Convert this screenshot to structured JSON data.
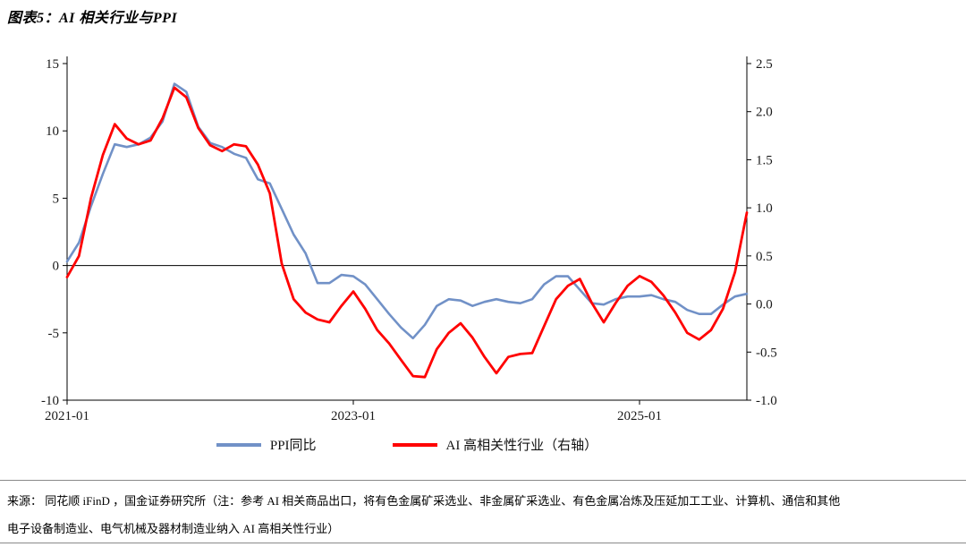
{
  "title": "图表5：AI 相关行业与PPI",
  "legend": [
    {
      "label": "PPI同比",
      "color": "#7191C7"
    },
    {
      "label": "AI 高相关性行业（右轴）",
      "color": "#FF0000"
    }
  ],
  "source_note_line1": "来源：  同花顺 iFinD ，国金证券研究所（注：参考 AI 相关商品出口，将有色金属矿采选业、非金属矿采选业、有色金属冶炼及压延加工工业、计算机、通信和其他",
  "source_note_line2": "电子设备制造业、电气机械及器材制造业纳入 AI 高相关性行业）",
  "chart_data": {
    "type": "line",
    "title": "图表5：AI 相关行业与PPI",
    "x_tick_labels": [
      "2021-01",
      "2023-01",
      "2025-01"
    ],
    "x_tick_month_index": [
      0,
      24,
      48
    ],
    "left_axis": {
      "min": -10,
      "max": 15,
      "ticks": [
        15,
        10,
        5,
        0,
        -5,
        -10
      ]
    },
    "right_axis": {
      "min": -1.0,
      "max": 2.5,
      "ticks": [
        2.5,
        2.0,
        1.5,
        1.0,
        0.5,
        0.0,
        -0.5,
        -1.0
      ]
    },
    "grid": "zero-line-only",
    "legend_position": "bottom",
    "months": [
      "2021-01",
      "2021-02",
      "2021-03",
      "2021-04",
      "2021-05",
      "2021-06",
      "2021-07",
      "2021-08",
      "2021-09",
      "2021-10",
      "2021-11",
      "2021-12",
      "2022-01",
      "2022-02",
      "2022-03",
      "2022-04",
      "2022-05",
      "2022-06",
      "2022-07",
      "2022-08",
      "2022-09",
      "2022-10",
      "2022-11",
      "2022-12",
      "2023-01",
      "2023-02",
      "2023-03",
      "2023-04",
      "2023-05",
      "2023-06",
      "2023-07",
      "2023-08",
      "2023-09",
      "2023-10",
      "2023-11",
      "2023-12",
      "2024-01",
      "2024-02",
      "2024-03",
      "2024-04",
      "2024-05",
      "2024-06",
      "2024-07",
      "2024-08",
      "2024-09",
      "2024-10",
      "2024-11",
      "2024-12",
      "2025-01",
      "2025-02",
      "2025-03",
      "2025-04",
      "2025-05",
      "2025-06",
      "2025-07",
      "2025-08",
      "2025-09",
      "2025-10"
    ],
    "series": [
      {
        "name": "PPI同比",
        "axis": "left",
        "color": "#7191C7",
        "values": [
          0.3,
          1.7,
          4.4,
          6.8,
          9.0,
          8.8,
          9.0,
          9.5,
          10.7,
          13.5,
          12.9,
          10.3,
          9.1,
          8.8,
          8.3,
          8.0,
          6.4,
          6.1,
          4.2,
          2.3,
          0.9,
          -1.3,
          -1.3,
          -0.7,
          -0.8,
          -1.4,
          -2.5,
          -3.6,
          -4.6,
          -5.4,
          -4.4,
          -3.0,
          -2.5,
          -2.6,
          -3.0,
          -2.7,
          -2.5,
          -2.7,
          -2.8,
          -2.5,
          -1.4,
          -0.8,
          -0.8,
          -1.8,
          -2.8,
          -2.9,
          -2.5,
          -2.3,
          -2.3,
          -2.2,
          -2.5,
          -2.7,
          -3.3,
          -3.6,
          -3.6,
          -2.9,
          -2.3,
          -2.1
        ]
      },
      {
        "name": "AI 高相关性行业（右轴）",
        "axis": "right",
        "color": "#FF0000",
        "values": [
          0.28,
          0.5,
          1.1,
          1.55,
          1.87,
          1.72,
          1.66,
          1.7,
          1.93,
          2.25,
          2.15,
          1.83,
          1.65,
          1.59,
          1.66,
          1.64,
          1.45,
          1.15,
          0.42,
          0.05,
          -0.09,
          -0.16,
          -0.19,
          -0.02,
          0.13,
          -0.05,
          -0.27,
          -0.41,
          -0.58,
          -0.75,
          -0.76,
          -0.47,
          -0.3,
          -0.2,
          -0.35,
          -0.55,
          -0.72,
          -0.55,
          -0.52,
          -0.51,
          -0.23,
          0.05,
          0.19,
          0.26,
          0.01,
          -0.19,
          0.01,
          0.19,
          0.29,
          0.23,
          0.09,
          -0.09,
          -0.3,
          -0.37,
          -0.27,
          -0.05,
          0.33,
          0.95
        ]
      }
    ]
  }
}
